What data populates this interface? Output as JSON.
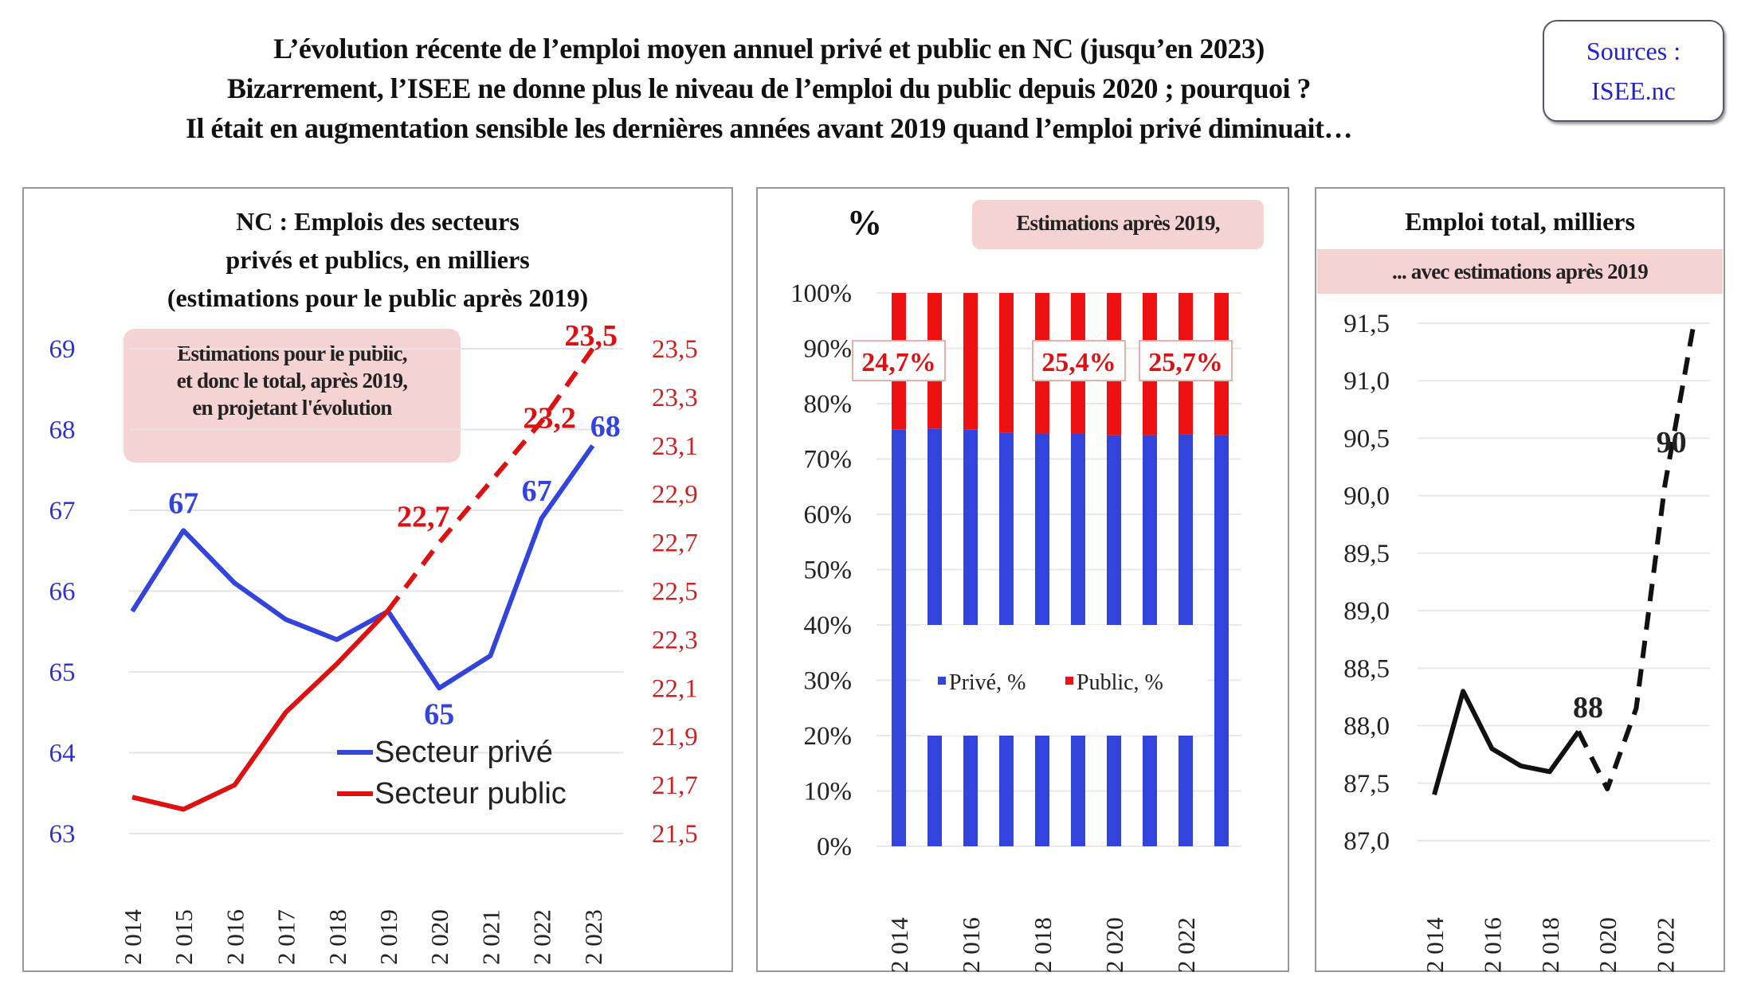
{
  "header": {
    "title_lines": [
      "L’évolution récente de l’emploi moyen annuel privé et public en NC (jusqu’en 2023)",
      "Bizarrement, l’ISEE ne donne plus le niveau de l’emploi du public depuis 2020 ; pourquoi ?",
      "Il était en augmentation sensible les dernières années avant 2019 quand l’emploi privé diminuait…"
    ],
    "sources_label": "Sources :",
    "sources_value": "ISEE.nc"
  },
  "chart_data": [
    {
      "type": "line",
      "title_lines": [
        "NC : Emplois des secteurs",
        "privés et publics, en milliers",
        "(estimations pour le public après 2019)"
      ],
      "annotation_lines": [
        "Estimations pour le public,",
        "et donc le total, après 2019,",
        "en projetant l'évolution"
      ],
      "categories": [
        "2 014",
        "2 015",
        "2 016",
        "2 017",
        "2 018",
        "2 019",
        "2 020",
        "2 021",
        "2 022",
        "2 023"
      ],
      "y_left": {
        "min": 63,
        "max": 69,
        "ticks": [
          "63",
          "64",
          "65",
          "66",
          "67",
          "68",
          "69"
        ],
        "color": "#3333cc"
      },
      "y_right": {
        "min": 21.5,
        "max": 23.5,
        "ticks": [
          "21,5",
          "21,7",
          "21,9",
          "22,1",
          "22,3",
          "22,5",
          "22,7",
          "22,9",
          "23,1",
          "23,3",
          "23,5"
        ],
        "color": "#cc2222"
      },
      "grid": true,
      "legend_placement": "bottom-right",
      "series": [
        {
          "name": "Secteur privé",
          "axis": "left",
          "color": "#3344dd",
          "values": [
            65.75,
            66.75,
            66.1,
            65.65,
            65.4,
            65.75,
            64.8,
            65.2,
            66.9,
            67.8
          ],
          "estimated_from_index": null,
          "data_labels": [
            {
              "index": 1,
              "text": "67"
            },
            {
              "index": 6,
              "text": "65"
            },
            {
              "index": 8,
              "text": "67"
            },
            {
              "index": 9,
              "text": "68"
            }
          ]
        },
        {
          "name": "Secteur public",
          "axis": "right",
          "color": "#dd1111",
          "values": [
            21.65,
            21.6,
            21.7,
            22.0,
            22.2,
            22.42,
            22.7,
            22.95,
            23.2,
            23.5
          ],
          "estimated_from_index": 5,
          "data_labels": [
            {
              "index": 6,
              "text": "22,7"
            },
            {
              "index": 8,
              "text": "23,2"
            },
            {
              "index": 9,
              "text": "23,5"
            }
          ]
        }
      ]
    },
    {
      "type": "bar",
      "stacked": "percent",
      "title": "%",
      "note": "Estimations après 2019,",
      "categories": [
        "2 014",
        "2 015",
        "2 016",
        "2 017",
        "2 018",
        "2 019",
        "2 020",
        "2 021",
        "2 022",
        "2 023"
      ],
      "x_tick_labels": [
        "2 014",
        "",
        "2 016",
        "",
        "2 018",
        "",
        "2 020",
        "",
        "2 022",
        ""
      ],
      "y_ticks": [
        "0%",
        "10%",
        "20%",
        "30%",
        "40%",
        "50%",
        "60%",
        "70%",
        "80%",
        "90%",
        "100%"
      ],
      "ylim": [
        0,
        100
      ],
      "grid": true,
      "legend_placement": "center",
      "series": [
        {
          "name": "Privé, %",
          "color": "#3344dd",
          "values": [
            75.3,
            75.5,
            75.3,
            74.8,
            74.6,
            74.6,
            74.3,
            74.3,
            74.4,
            74.3
          ]
        },
        {
          "name": "Public, %",
          "color": "#ee1111",
          "values": [
            24.7,
            24.5,
            24.7,
            25.2,
            25.4,
            25.4,
            25.7,
            25.7,
            25.6,
            25.7
          ]
        }
      ],
      "data_labels": [
        {
          "text": "24,7%"
        },
        {
          "text": "25,4%"
        },
        {
          "text": "25,7%"
        }
      ]
    },
    {
      "type": "line",
      "title": "Emploi total, milliers",
      "note": "... avec estimations après 2019",
      "categories": [
        "2 014",
        "2 015",
        "2 016",
        "2 017",
        "2 018",
        "2 019",
        "2 020",
        "2 021",
        "2 022",
        "2 023"
      ],
      "x_tick_labels": [
        "2 014",
        "",
        "2 016",
        "",
        "2 018",
        "",
        "2 020",
        "",
        "2 022",
        ""
      ],
      "y_ticks": [
        "87,0",
        "87,5",
        "88,0",
        "88,5",
        "89,0",
        "89,5",
        "90,0",
        "90,5",
        "91,0",
        "91,5"
      ],
      "ylim": [
        87.0,
        91.5
      ],
      "grid": true,
      "series": [
        {
          "color": "#111111",
          "values": [
            87.4,
            88.3,
            87.8,
            87.65,
            87.6,
            87.95,
            87.45,
            88.15,
            90.1,
            91.5
          ],
          "estimated_from_index": 5,
          "data_labels": [
            {
              "index": 5,
              "text": "88"
            },
            {
              "index": 8,
              "text": "90"
            }
          ]
        }
      ]
    }
  ]
}
